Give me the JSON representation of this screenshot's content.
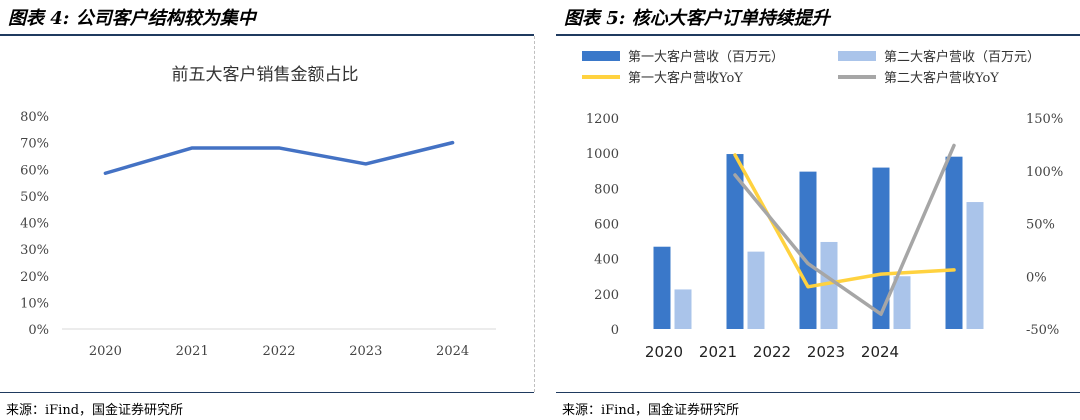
{
  "left": {
    "figure_title": "图表 4: 公司客户结构较为集中",
    "source": "来源：iFind，国金证券研究所",
    "chart_data": {
      "type": "line",
      "title": "前五大客户销售金额占比",
      "categories": [
        "2020",
        "2021",
        "2022",
        "2023",
        "2024"
      ],
      "y_ticks": [
        "80%",
        "70%",
        "60%",
        "50%",
        "40%",
        "30%",
        "20%",
        "10%",
        "0%"
      ],
      "ylim": [
        0,
        80
      ],
      "series": [
        {
          "values": [
            58.5,
            68,
            68,
            62,
            70
          ],
          "color": "#4472c4"
        }
      ]
    }
  },
  "right": {
    "figure_title": "图表 5: 核心大客户订单持续提升",
    "source": "来源：iFind，国金证券研究所",
    "chart_data": {
      "type": "bar",
      "categories": [
        "2020",
        "2021",
        "2022",
        "2023",
        "2024"
      ],
      "x_tick_labels": [
        "2020",
        "2021",
        "2022",
        "2023",
        "2024"
      ],
      "y_left_ticks": [
        "1200",
        "1000",
        "800",
        "600",
        "400",
        "200",
        "0"
      ],
      "y_right_ticks": [
        "150%",
        "100%",
        "50%",
        "0%",
        "-50%"
      ],
      "ylim_left": [
        0,
        1200
      ],
      "ylim_right": [
        -50,
        150
      ],
      "series": [
        {
          "name": "第一大客户营收（百万元）",
          "kind": "bar",
          "axis": "left",
          "color": "#3a78c9",
          "values": [
            468,
            995,
            895,
            918,
            980
          ]
        },
        {
          "name": "第二大客户营收（百万元）",
          "kind": "bar",
          "axis": "left",
          "color": "#aac4ea",
          "values": [
            225,
            440,
            495,
            300,
            722
          ]
        },
        {
          "name": "第一大客户营收YoY",
          "kind": "line",
          "axis": "right",
          "color": "#ffd23f",
          "values": [
            null,
            115,
            -10,
            2,
            6
          ]
        },
        {
          "name": "第二大客户营收YoY",
          "kind": "line",
          "axis": "right",
          "color": "#a6a6a6",
          "values": [
            null,
            96,
            12,
            -36,
            124
          ]
        }
      ]
    }
  }
}
